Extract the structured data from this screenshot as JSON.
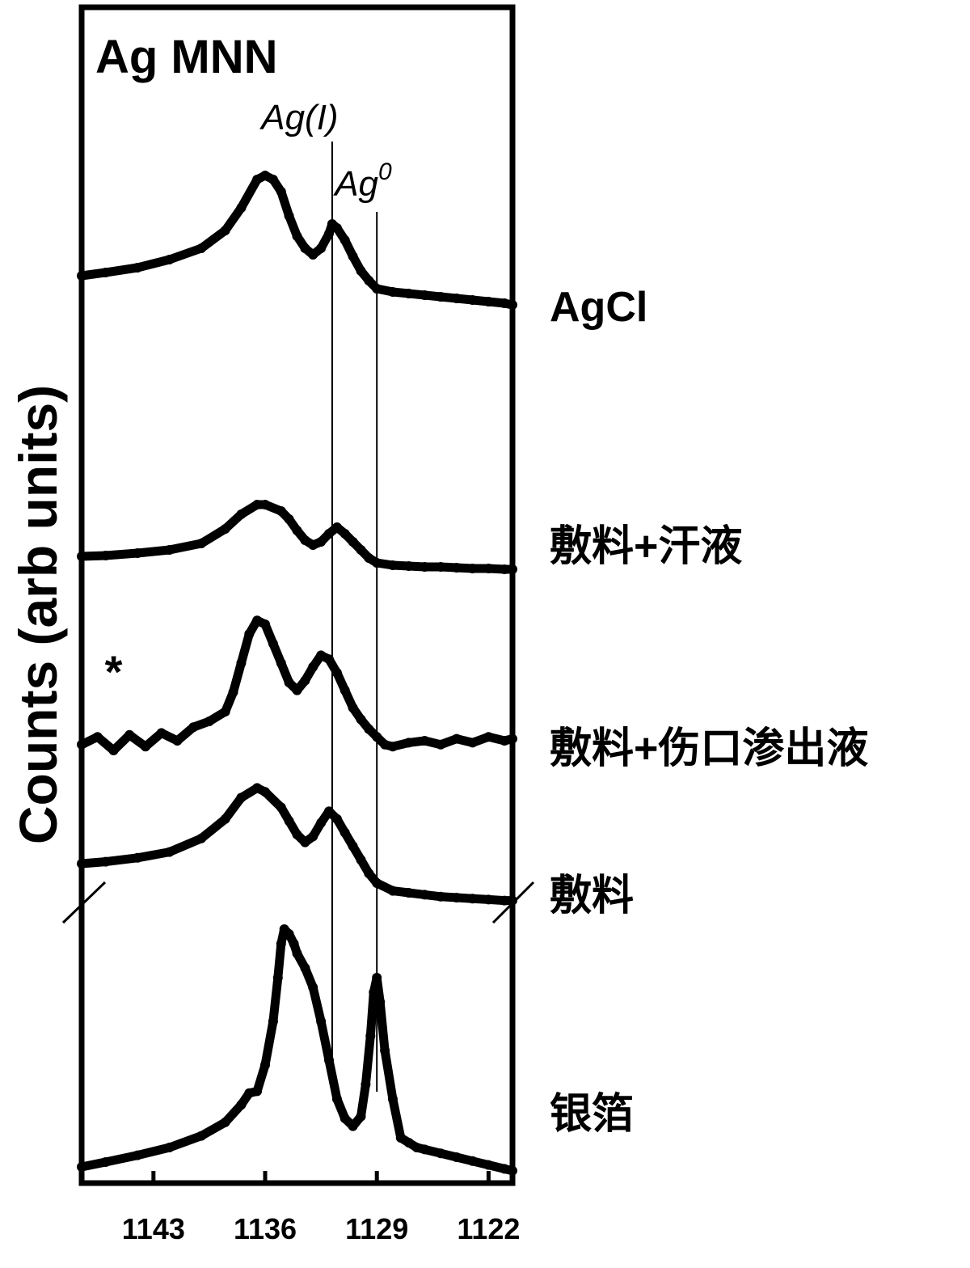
{
  "chart_data": {
    "type": "line",
    "title": "Ag MNN",
    "ylabel": "Counts (arb units)",
    "xlabel": "",
    "x_ticks": [
      "1143",
      "1136",
      "1129",
      "1122"
    ],
    "xlim": [
      1147.5,
      1120.5
    ],
    "grid": false,
    "reversed_x": true,
    "y_scale": "arbitrary, offset stack",
    "reference_lines": [
      {
        "label_main": "Ag(I)",
        "label_sup": "",
        "x": 1131.8
      },
      {
        "label_main": "Ag",
        "label_sup": "0",
        "x": 1129.0
      }
    ],
    "annotations": [
      {
        "text": "*",
        "x": 1145.5
      }
    ],
    "axis_break": true,
    "series": [
      {
        "name": "AgCl",
        "x": [
          1147.5,
          1146,
          1144,
          1142,
          1140,
          1138.5,
          1137.5,
          1136.5,
          1136,
          1135.5,
          1135,
          1134.5,
          1134,
          1133.5,
          1133,
          1132.5,
          1132,
          1131.8,
          1131.5,
          1131,
          1130.5,
          1130,
          1129.5,
          1129,
          1128,
          1127,
          1126,
          1125,
          1124,
          1123,
          1122,
          1121,
          1120.5
        ],
        "y": [
          0.36,
          0.4,
          0.46,
          0.56,
          0.7,
          0.92,
          1.2,
          1.55,
          1.6,
          1.55,
          1.4,
          1.1,
          0.85,
          0.7,
          0.62,
          0.7,
          0.88,
          1.0,
          0.95,
          0.8,
          0.6,
          0.42,
          0.3,
          0.2,
          0.16,
          0.14,
          0.12,
          0.1,
          0.08,
          0.06,
          0.04,
          0.02,
          0.0
        ]
      },
      {
        "name": "敷料+汗液",
        "x": [
          1147.5,
          1146,
          1144,
          1142,
          1140,
          1138.5,
          1137.5,
          1136.5,
          1136,
          1135,
          1134.5,
          1134,
          1133.5,
          1133,
          1132.5,
          1132,
          1131.5,
          1131,
          1130.5,
          1130,
          1129.5,
          1129,
          1128,
          1127,
          1126,
          1125,
          1124,
          1123,
          1122,
          1121,
          1120.5
        ],
        "y": [
          0.16,
          0.17,
          0.2,
          0.24,
          0.32,
          0.5,
          0.68,
          0.8,
          0.8,
          0.72,
          0.62,
          0.48,
          0.36,
          0.3,
          0.34,
          0.44,
          0.52,
          0.44,
          0.34,
          0.24,
          0.14,
          0.08,
          0.05,
          0.04,
          0.03,
          0.03,
          0.02,
          0.01,
          0.01,
          0.0,
          0.0
        ]
      },
      {
        "name": "敷料+伤口渗出液",
        "x": [
          1147.5,
          1146.5,
          1145.5,
          1144.5,
          1143.5,
          1142.5,
          1141.5,
          1140.5,
          1139.5,
          1138.5,
          1138,
          1137.5,
          1137,
          1136.5,
          1136,
          1135.5,
          1135,
          1134.5,
          1134,
          1133.5,
          1133,
          1132.5,
          1132,
          1131.5,
          1131,
          1130.5,
          1130,
          1129.5,
          1129,
          1128.5,
          1128,
          1127,
          1126,
          1125,
          1124,
          1123,
          1122,
          1121,
          1120.5
        ],
        "y": [
          0.06,
          0.14,
          0.0,
          0.16,
          0.04,
          0.18,
          0.1,
          0.24,
          0.3,
          0.4,
          0.6,
          0.9,
          1.2,
          1.34,
          1.3,
          1.1,
          0.9,
          0.7,
          0.62,
          0.72,
          0.86,
          0.98,
          0.94,
          0.8,
          0.62,
          0.44,
          0.32,
          0.22,
          0.14,
          0.06,
          0.04,
          0.08,
          0.1,
          0.06,
          0.12,
          0.08,
          0.14,
          0.1,
          0.12
        ]
      },
      {
        "name": "敷料",
        "x": [
          1147.5,
          1146,
          1144,
          1142,
          1140,
          1138.5,
          1137.5,
          1136.5,
          1136,
          1135,
          1134.5,
          1134,
          1133.5,
          1133,
          1132.5,
          1132,
          1131.5,
          1131,
          1130.5,
          1130,
          1129.5,
          1129,
          1128,
          1127,
          1126,
          1125,
          1124,
          1123,
          1122,
          1121,
          1120.5
        ],
        "y": [
          0.4,
          0.42,
          0.46,
          0.52,
          0.66,
          0.86,
          1.08,
          1.18,
          1.14,
          0.98,
          0.84,
          0.7,
          0.62,
          0.68,
          0.82,
          0.94,
          0.86,
          0.72,
          0.58,
          0.44,
          0.3,
          0.2,
          0.12,
          0.1,
          0.08,
          0.06,
          0.05,
          0.04,
          0.03,
          0.02,
          0.02
        ]
      },
      {
        "name": "银箔",
        "x": [
          1147.5,
          1146,
          1144,
          1142,
          1140,
          1138.5,
          1137.5,
          1137,
          1136.5,
          1136,
          1135.5,
          1135.2,
          1135,
          1134.8,
          1134.5,
          1134.2,
          1134,
          1133.5,
          1133,
          1132.5,
          1132,
          1131.5,
          1131,
          1130.5,
          1130,
          1129.7,
          1129.4,
          1129.2,
          1129,
          1128.8,
          1128.5,
          1128,
          1127.5,
          1127,
          1126.5,
          1126,
          1125,
          1124,
          1123,
          1122,
          1121,
          1120.5
        ],
        "y": [
          0.0,
          0.05,
          0.12,
          0.2,
          0.32,
          0.46,
          0.64,
          0.76,
          0.78,
          1.05,
          1.5,
          1.95,
          2.3,
          2.45,
          2.4,
          2.3,
          2.2,
          2.05,
          1.85,
          1.5,
          1.1,
          0.7,
          0.5,
          0.42,
          0.52,
          0.85,
          1.35,
          1.8,
          1.95,
          1.7,
          1.2,
          0.7,
          0.3,
          0.25,
          0.2,
          0.18,
          0.14,
          0.1,
          0.06,
          0.02,
          -0.02,
          -0.04
        ]
      }
    ]
  }
}
